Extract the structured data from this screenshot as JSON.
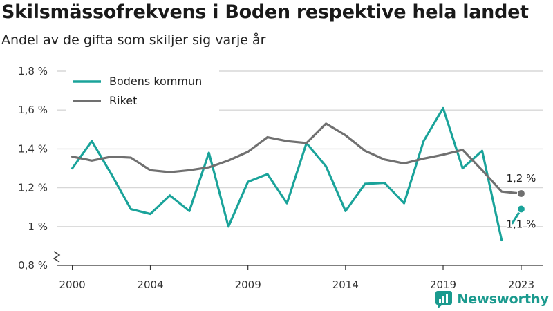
{
  "header": {
    "title": "Skilsmässofrekvens i Boden respektive hela landet",
    "subtitle": "Andel av de gifta som skiljer sig varje år"
  },
  "brand": {
    "name": "Newsworthy",
    "color": "#1a9a8e"
  },
  "chart_data": {
    "type": "line",
    "y_ticks": [
      {
        "value": 0.8,
        "label": "0,8 %"
      },
      {
        "value": 1.0,
        "label": "1 %"
      },
      {
        "value": 1.2,
        "label": "1,2 %"
      },
      {
        "value": 1.4,
        "label": "1,4 %"
      },
      {
        "value": 1.6,
        "label": "1,6 %"
      },
      {
        "value": 1.8,
        "label": "1,8 %"
      }
    ],
    "x_ticks": [
      2000,
      2004,
      2009,
      2014,
      2019,
      2023
    ],
    "ylim": [
      0.8,
      1.8
    ],
    "xlim": [
      1999.2,
      2024.1
    ],
    "y_axis_break": true,
    "grid": true,
    "legend_position": "top-left",
    "x": [
      2000,
      2001,
      2002,
      2003,
      2004,
      2005,
      2006,
      2007,
      2008,
      2009,
      2010,
      2011,
      2012,
      2013,
      2014,
      2015,
      2016,
      2017,
      2018,
      2019,
      2020,
      2021,
      2022,
      2023
    ],
    "series": [
      {
        "name": "Bodens kommun",
        "color": "#1aa39a",
        "values": [
          1.3,
          1.44,
          1.27,
          1.09,
          1.065,
          1.16,
          1.08,
          1.38,
          1.0,
          1.23,
          1.27,
          1.12,
          1.43,
          1.31,
          1.08,
          1.22,
          1.225,
          1.12,
          1.44,
          1.61,
          1.3,
          1.39,
          0.93,
          1.09
        ],
        "end_label": "1,1 %",
        "gap_before_last": true
      },
      {
        "name": "Riket",
        "color": "#707070",
        "values": [
          1.36,
          1.34,
          1.36,
          1.355,
          1.29,
          1.28,
          1.29,
          1.305,
          1.34,
          1.385,
          1.46,
          1.44,
          1.43,
          1.53,
          1.47,
          1.39,
          1.345,
          1.325,
          1.35,
          1.37,
          1.395,
          1.29,
          1.18,
          1.17
        ],
        "end_label": "1,2 %"
      }
    ]
  }
}
